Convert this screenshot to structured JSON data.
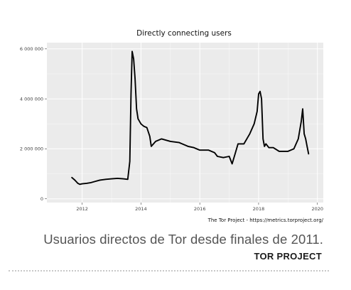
{
  "chart_data": {
    "type": "line",
    "title": "Directly connecting users",
    "source": "The Tor Project - https://metrics.torproject.org/",
    "xlabel": "",
    "ylabel": "",
    "xlim": [
      2010.8,
      2020.2
    ],
    "ylim": [
      -150000,
      6250000
    ],
    "x_ticks": [
      2012,
      2014,
      2016,
      2018,
      2020
    ],
    "x_tick_labels": [
      "2012",
      "2014",
      "2016",
      "2018",
      "2020"
    ],
    "y_ticks": [
      0,
      2000000,
      4000000,
      6000000
    ],
    "y_tick_labels": [
      "0",
      "2 000 000",
      "4 000 000",
      "6 000 000"
    ],
    "grid": true,
    "legend": "none",
    "colors": {
      "line": "#000000",
      "panel": "#ebebeb",
      "grid": "#ffffff"
    },
    "series": [
      {
        "x": [
          2011.65,
          2011.75,
          2011.85,
          2011.92,
          2012.0,
          2012.15,
          2012.3,
          2012.45,
          2012.6,
          2012.8,
          2013.0,
          2013.2,
          2013.4,
          2013.55,
          2013.62,
          2013.66,
          2013.7,
          2013.75,
          2013.8,
          2013.85,
          2013.9,
          2014.0,
          2014.1,
          2014.2,
          2014.3,
          2014.35,
          2014.5,
          2014.7,
          2015.0,
          2015.3,
          2015.6,
          2015.8,
          2016.0,
          2016.3,
          2016.5,
          2016.6,
          2016.8,
          2017.0,
          2017.1,
          2017.2,
          2017.3,
          2017.5,
          2017.7,
          2017.85,
          2017.95,
          2018.0,
          2018.05,
          2018.1,
          2018.15,
          2018.2,
          2018.25,
          2018.35,
          2018.5,
          2018.7,
          2018.9,
          2019.0,
          2019.2,
          2019.35,
          2019.45,
          2019.5,
          2019.55,
          2019.6,
          2019.65,
          2019.7
        ],
        "y": [
          850000,
          750000,
          620000,
          580000,
          600000,
          620000,
          650000,
          700000,
          750000,
          780000,
          800000,
          820000,
          800000,
          780000,
          1500000,
          4200000,
          5900000,
          5600000,
          4800000,
          3600000,
          3200000,
          3000000,
          2900000,
          2850000,
          2500000,
          2100000,
          2300000,
          2400000,
          2300000,
          2250000,
          2100000,
          2050000,
          1950000,
          1950000,
          1850000,
          1700000,
          1650000,
          1700000,
          1400000,
          1800000,
          2200000,
          2200000,
          2600000,
          3000000,
          3500000,
          4200000,
          4300000,
          4000000,
          2400000,
          2100000,
          2200000,
          2050000,
          2050000,
          1900000,
          1900000,
          1900000,
          2000000,
          2400000,
          3100000,
          3600000,
          2600000,
          2400000,
          2100000,
          1800000
        ]
      }
    ]
  },
  "caption": "Usuarios directos de Tor desde finales de 2011.",
  "credit": "TOR PROJECT"
}
